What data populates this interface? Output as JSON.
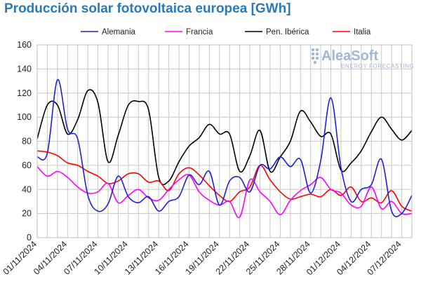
{
  "chart_data": {
    "type": "line",
    "title": "Producción solar fotovoltaica europea [GWh]",
    "ylim": [
      0,
      160
    ],
    "yticks": [
      0,
      20,
      40,
      60,
      80,
      100,
      120,
      140,
      160
    ],
    "grid": true,
    "legend_position": "top",
    "x": [
      "01/11/2024",
      "02/11/2024",
      "03/11/2024",
      "04/11/2024",
      "05/11/2024",
      "06/11/2024",
      "07/11/2024",
      "08/11/2024",
      "09/11/2024",
      "10/11/2024",
      "11/11/2024",
      "12/11/2024",
      "13/11/2024",
      "14/11/2024",
      "15/11/2024",
      "16/11/2024",
      "17/11/2024",
      "18/11/2024",
      "19/11/2024",
      "20/11/2024",
      "21/11/2024",
      "22/11/2024",
      "23/11/2024",
      "24/11/2024",
      "25/11/2024",
      "26/11/2024",
      "27/11/2024",
      "28/11/2024",
      "29/11/2024",
      "30/11/2024",
      "01/12/2024",
      "02/12/2024",
      "03/12/2024",
      "04/12/2024",
      "05/12/2024",
      "06/12/2024",
      "07/12/2024",
      "08/12/2024"
    ],
    "xtick_labels": [
      "01/11/2024",
      "04/11/2024",
      "07/11/2024",
      "10/11/2024",
      "13/11/2024",
      "16/11/2024",
      "19/11/2024",
      "22/11/2024",
      "25/11/2024",
      "28/11/2024",
      "01/12/2024",
      "04/12/2024",
      "07/12/2024"
    ],
    "series": [
      {
        "name": "Alemania",
        "color": "#1f1fd6",
        "values": [
          67,
          70,
          131,
          90,
          82,
          35,
          22,
          28,
          51,
          34,
          29,
          34,
          22,
          30,
          34,
          52,
          44,
          55,
          27,
          47,
          50,
          38,
          60,
          57,
          67,
          59,
          65,
          37,
          64,
          116,
          58,
          30,
          40,
          44,
          65,
          22,
          20,
          35
        ]
      },
      {
        "name": "Francia",
        "color": "#ff00ff",
        "values": [
          59,
          51,
          55,
          50,
          42,
          37,
          38,
          45,
          29,
          35,
          40,
          33,
          31,
          40,
          48,
          52,
          38,
          31,
          27,
          30,
          17,
          48,
          38,
          30,
          19,
          31,
          39,
          44,
          50,
          40,
          37,
          27,
          26,
          42,
          24,
          30,
          20,
          20
        ]
      },
      {
        "name": "Pen. Ibérica",
        "color": "#000000",
        "values": [
          82,
          110,
          110,
          86,
          98,
          122,
          112,
          63,
          85,
          110,
          113,
          106,
          50,
          47,
          63,
          76,
          83,
          94,
          86,
          86,
          55,
          68,
          89,
          55,
          67,
          80,
          105,
          96,
          84,
          86,
          56,
          62,
          72,
          88,
          100,
          90,
          81,
          89
        ]
      },
      {
        "name": "Italia",
        "color": "#ff0000",
        "values": [
          72,
          71,
          68,
          62,
          60,
          55,
          51,
          45,
          47,
          53,
          53,
          46,
          47,
          39,
          53,
          58,
          52,
          43,
          35,
          30,
          38,
          42,
          60,
          48,
          38,
          32,
          34,
          36,
          34,
          40,
          35,
          42,
          30,
          33,
          29,
          39,
          26,
          22
        ]
      }
    ]
  },
  "logo": {
    "text": "AleaSoft",
    "subtitle": "ENERGY FORECASTING"
  }
}
